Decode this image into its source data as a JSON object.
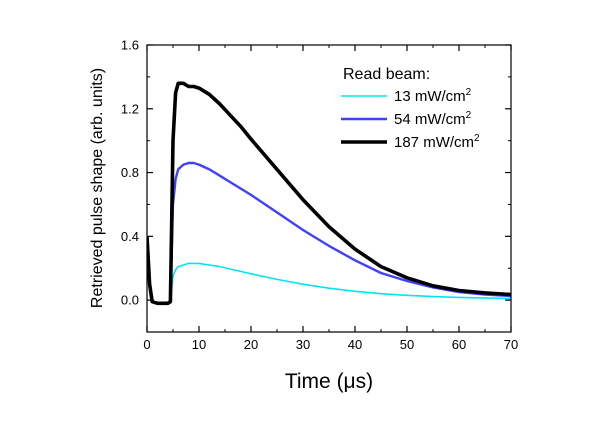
{
  "chart_data": {
    "type": "line",
    "xlabel": "Time (μs)",
    "ylabel": "Retrieved pulse shape (arb. units)",
    "xlim": [
      0,
      70
    ],
    "ylim": [
      -0.2,
      1.6
    ],
    "xticks": [
      0,
      10,
      20,
      30,
      40,
      50,
      60,
      70
    ],
    "yticks": [
      0.0,
      0.4,
      0.8,
      1.2,
      1.6
    ],
    "xtick_labels": [
      "0",
      "10",
      "20",
      "30",
      "40",
      "50",
      "60",
      "70"
    ],
    "ytick_labels": [
      "0.0",
      "0.4",
      "0.8",
      "1.2",
      "1.6"
    ],
    "grid": false,
    "legend_title": "Read beam:",
    "legend_position": "top-right",
    "series": [
      {
        "name": "13 mW/cm",
        "name_sup": "2",
        "color": "#00e5ee",
        "x": [
          0,
          0.5,
          1,
          2,
          3,
          4,
          4.5,
          5,
          5.5,
          6,
          7,
          8,
          9,
          10,
          12,
          14,
          16,
          18,
          20,
          25,
          30,
          35,
          40,
          45,
          50,
          55,
          60,
          65,
          70
        ],
        "y": [
          0.4,
          0.1,
          -0.01,
          -0.02,
          -0.02,
          -0.02,
          -0.01,
          0.15,
          0.19,
          0.21,
          0.22,
          0.23,
          0.23,
          0.23,
          0.22,
          0.21,
          0.195,
          0.18,
          0.165,
          0.13,
          0.1,
          0.075,
          0.055,
          0.04,
          0.03,
          0.022,
          0.017,
          0.013,
          0.01
        ]
      },
      {
        "name": "54 mW/cm",
        "name_sup": "2",
        "color": "#4040ff",
        "x": [
          0,
          0.5,
          1,
          2,
          3,
          4,
          4.5,
          5,
          5.5,
          6,
          7,
          8,
          9,
          10,
          12,
          14,
          16,
          18,
          20,
          25,
          30,
          35,
          40,
          45,
          50,
          55,
          60,
          65,
          70
        ],
        "y": [
          0.4,
          0.1,
          -0.01,
          -0.02,
          -0.02,
          -0.02,
          -0.01,
          0.6,
          0.76,
          0.82,
          0.85,
          0.86,
          0.86,
          0.85,
          0.82,
          0.78,
          0.74,
          0.7,
          0.66,
          0.55,
          0.44,
          0.34,
          0.25,
          0.17,
          0.12,
          0.08,
          0.05,
          0.035,
          0.025
        ]
      },
      {
        "name": "187 mW/cm",
        "name_sup": "2",
        "color": "#000000",
        "x": [
          0,
          0.5,
          1,
          2,
          3,
          4,
          4.5,
          5,
          5.5,
          6,
          7,
          8,
          9,
          10,
          12,
          14,
          16,
          18,
          20,
          25,
          30,
          35,
          40,
          45,
          50,
          55,
          60,
          65,
          70
        ],
        "y": [
          0.4,
          0.1,
          -0.01,
          -0.02,
          -0.02,
          -0.02,
          -0.01,
          1.0,
          1.3,
          1.36,
          1.36,
          1.34,
          1.34,
          1.33,
          1.29,
          1.23,
          1.16,
          1.09,
          1.01,
          0.82,
          0.63,
          0.46,
          0.32,
          0.21,
          0.14,
          0.09,
          0.06,
          0.045,
          0.035
        ]
      }
    ]
  }
}
